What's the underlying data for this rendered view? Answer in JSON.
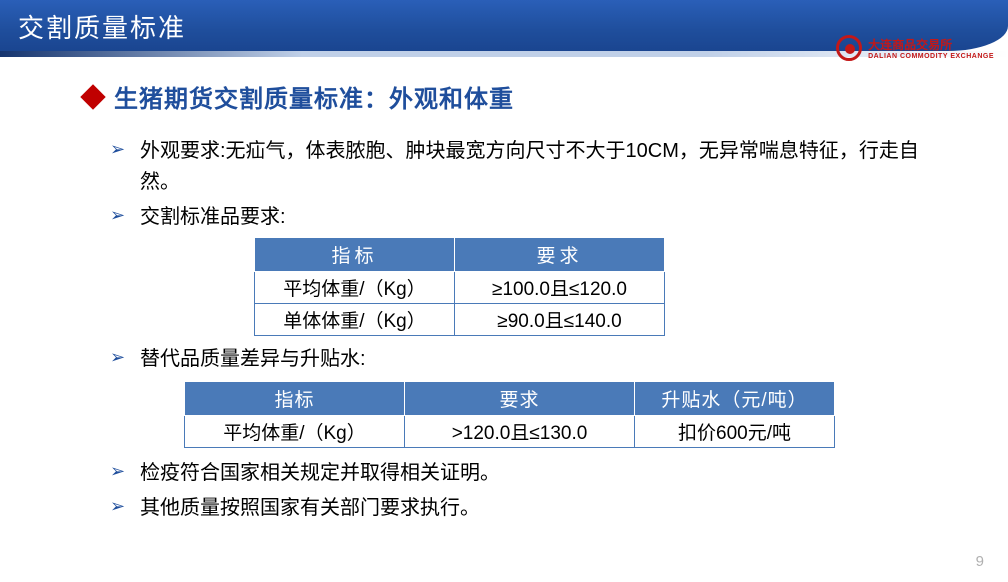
{
  "header": {
    "title": "交割质量标准",
    "logo_main": "大连商品交易所",
    "logo_sub": "DALIAN COMMODITY EXCHANGE"
  },
  "subtitle": "生猪期货交割质量标准：外观和体重",
  "bullets": {
    "b1": "外观要求:无疝气，体表脓胞、肿块最宽方向尺寸不大于10CM，无异常喘息特征，行走自然。",
    "b2": "交割标准品要求:",
    "b3": "替代品质量差异与升贴水:",
    "b4": "检疫符合国家相关规定并取得相关证明。",
    "b5": "其他质量按照国家有关部门要求执行。"
  },
  "table1": {
    "headers": [
      "指标",
      "要求"
    ],
    "rows": [
      [
        "平均体重/（Kg）",
        "≥100.0且≤120.0"
      ],
      [
        "单体体重/（Kg）",
        "≥90.0且≤140.0"
      ]
    ]
  },
  "table2": {
    "headers": [
      "指标",
      "要求",
      "升贴水（元/吨）"
    ],
    "rows": [
      [
        "平均体重/（Kg）",
        ">120.0且≤130.0",
        "扣价600元/吨"
      ]
    ]
  },
  "page_number": "9",
  "colors": {
    "title_bg": "#1f4e9c",
    "accent_red": "#c00000",
    "th_bg": "#4a7ab8",
    "text": "#000000",
    "logo": "#c31818"
  }
}
